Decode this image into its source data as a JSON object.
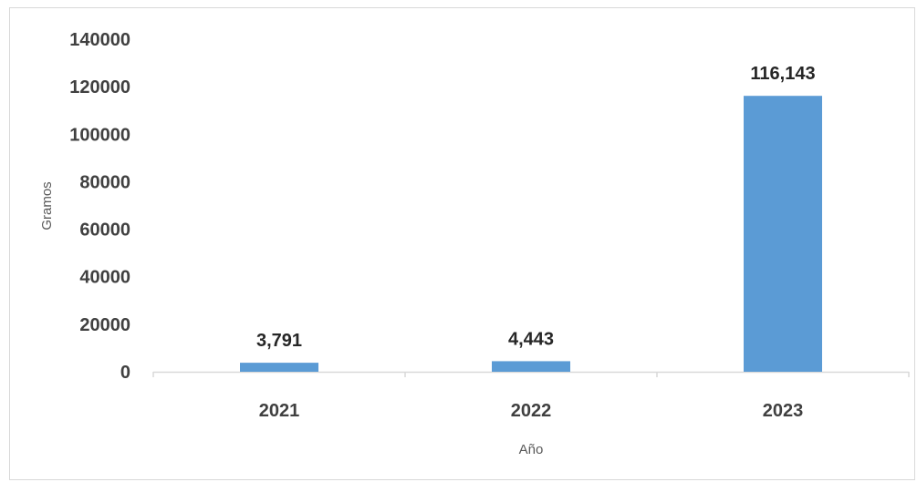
{
  "chart_data": {
    "type": "bar",
    "title": "",
    "categories": [
      "2021",
      "2022",
      "2023"
    ],
    "values": [
      3791,
      4443,
      116143
    ],
    "data_labels": [
      "3,791",
      "4,443",
      "116,143"
    ],
    "xlabel": "Año",
    "ylabel": "Gramos",
    "ylim": [
      0,
      140000
    ],
    "y_ticks": [
      "0",
      "20000",
      "40000",
      "60000",
      "80000",
      "100000",
      "120000",
      "140000"
    ],
    "grid": false,
    "legend": "none",
    "bar_color": "#5B9BD5",
    "axis_color": "#d9d9d9"
  }
}
